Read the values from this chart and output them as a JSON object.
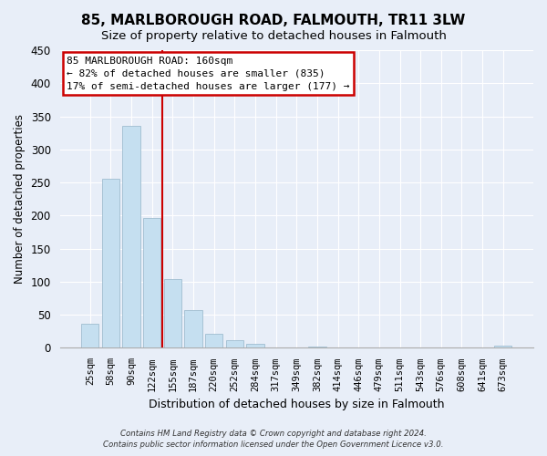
{
  "title": "85, MARLBOROUGH ROAD, FALMOUTH, TR11 3LW",
  "subtitle": "Size of property relative to detached houses in Falmouth",
  "xlabel": "Distribution of detached houses by size in Falmouth",
  "ylabel": "Number of detached properties",
  "bar_labels": [
    "25sqm",
    "58sqm",
    "90sqm",
    "122sqm",
    "155sqm",
    "187sqm",
    "220sqm",
    "252sqm",
    "284sqm",
    "317sqm",
    "349sqm",
    "382sqm",
    "414sqm",
    "446sqm",
    "479sqm",
    "511sqm",
    "543sqm",
    "576sqm",
    "608sqm",
    "641sqm",
    "673sqm"
  ],
  "bar_heights": [
    36,
    255,
    335,
    197,
    104,
    57,
    21,
    11,
    6,
    0,
    0,
    2,
    0,
    0,
    1,
    0,
    0,
    0,
    0,
    0,
    3
  ],
  "bar_color": "#c5dff0",
  "bar_edge_color": "#a0bdd0",
  "vline_x": 3.5,
  "vline_color": "#cc0000",
  "annotation_text": "85 MARLBOROUGH ROAD: 160sqm\n← 82% of detached houses are smaller (835)\n17% of semi-detached houses are larger (177) →",
  "annotation_box_color": "white",
  "annotation_box_edgecolor": "#cc0000",
  "ylim": [
    0,
    450
  ],
  "yticks": [
    0,
    50,
    100,
    150,
    200,
    250,
    300,
    350,
    400,
    450
  ],
  "footnote1": "Contains HM Land Registry data © Crown copyright and database right 2024.",
  "footnote2": "Contains public sector information licensed under the Open Government Licence v3.0.",
  "bg_color": "#e8eef8",
  "plot_bg_color": "#e8eef8",
  "grid_color": "#ffffff",
  "title_fontsize": 11,
  "subtitle_fontsize": 9.5
}
